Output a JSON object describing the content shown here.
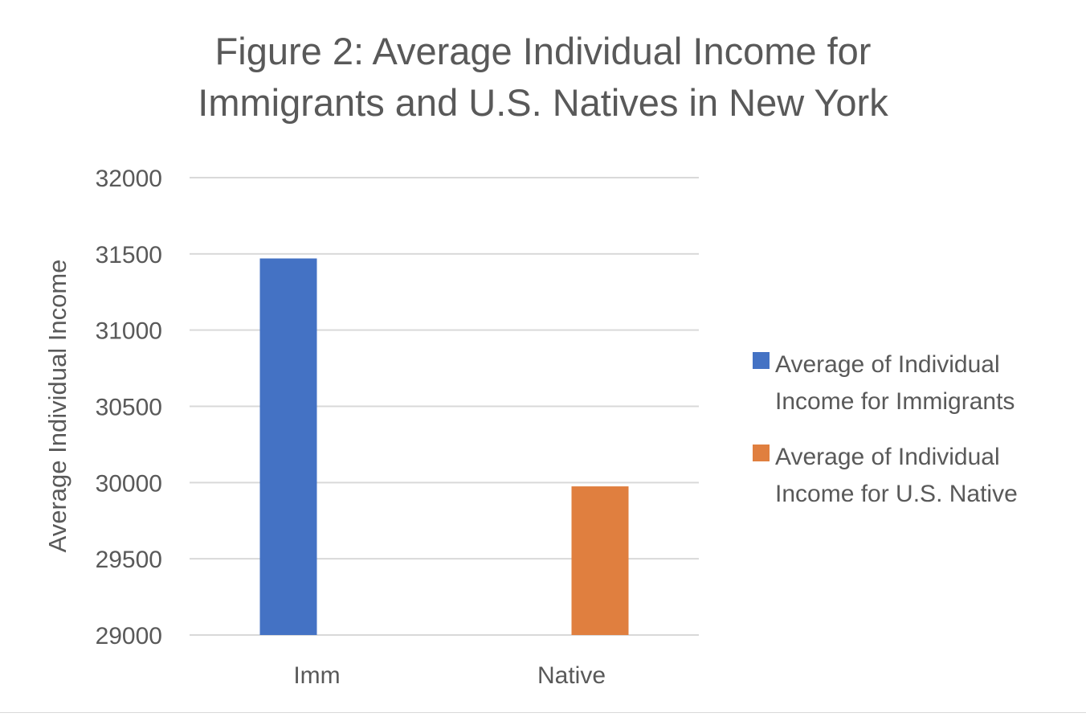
{
  "chart_data": {
    "type": "bar",
    "title": "Figure 2: Average Individual Income for Immigrants and U.S. Natives in New York",
    "title_lines": [
      "Figure 2: Average Individual Income for",
      "Immigrants and U.S. Natives in New York"
    ],
    "xlabel": "",
    "ylabel": "Average Individual Income",
    "categories": [
      "Imm",
      "Native"
    ],
    "series": [
      {
        "name": "Average of Individual Income for Immigrants",
        "legend_lines": [
          "Average of Individual",
          "Income for Immigrants"
        ],
        "color": "#4472c4",
        "values": [
          31470,
          null
        ]
      },
      {
        "name": "Average of Individual Income for U.S. Native",
        "legend_lines": [
          "Average of Individual",
          "Income for U.S. Native"
        ],
        "color": "#e07f3f",
        "values": [
          null,
          29975
        ]
      }
    ],
    "ylim": [
      29000,
      32000
    ],
    "yticks": [
      29000,
      29500,
      30000,
      30500,
      31000,
      31500,
      32000
    ],
    "ytick_labels": [
      "29000",
      "29500",
      "30000",
      "30500",
      "31000",
      "31500",
      "32000"
    ],
    "grid": true,
    "gridline_color": "#d9d9d9",
    "legend_position": "right"
  }
}
